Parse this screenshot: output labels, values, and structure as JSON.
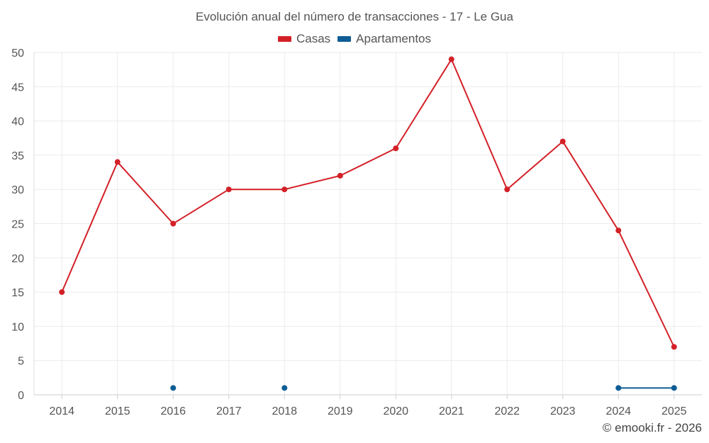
{
  "chart_data": {
    "type": "line",
    "title": "Evolución anual del número de transacciones - 17 - Le Gua",
    "xlabel": "",
    "ylabel": "",
    "categories": [
      "2014",
      "2015",
      "2016",
      "2017",
      "2018",
      "2019",
      "2020",
      "2021",
      "2022",
      "2023",
      "2024",
      "2025"
    ],
    "ylim": [
      0,
      50
    ],
    "yticks": [
      0,
      5,
      10,
      15,
      20,
      25,
      30,
      35,
      40,
      45,
      50
    ],
    "grid": true,
    "legend_position": "top-center",
    "series": [
      {
        "name": "Casas",
        "color": "#d32027",
        "values": [
          15,
          34,
          25,
          30,
          30,
          32,
          36,
          49,
          30,
          37,
          24,
          7
        ]
      },
      {
        "name": "Apartamentos",
        "color": "#0e5d95",
        "values": [
          null,
          null,
          1,
          null,
          1,
          null,
          null,
          null,
          null,
          null,
          1,
          1
        ]
      }
    ]
  },
  "credit": "© emooki.fr - 2026"
}
